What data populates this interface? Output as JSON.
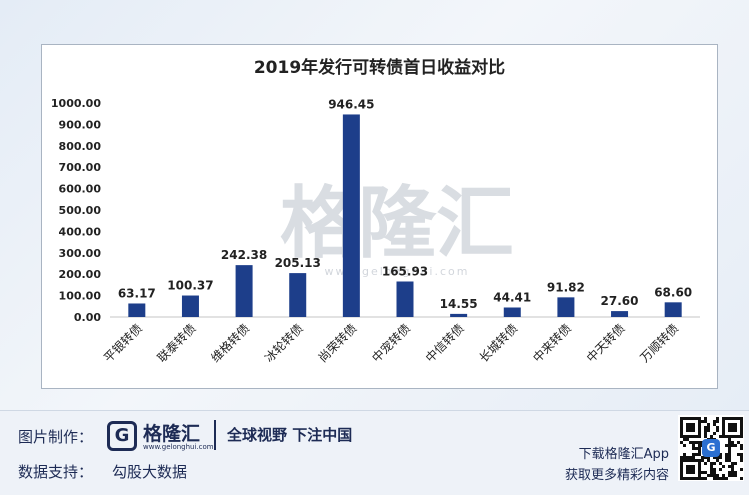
{
  "chart_data": {
    "type": "bar",
    "title": "2019年发行可转债首日收益对比",
    "categories": [
      "平银转债",
      "联泰转债",
      "维格转债",
      "冰轮转债",
      "尚荣转债",
      "中宠转债",
      "中信转债",
      "长城转债",
      "中来转债",
      "中天转债",
      "万顺转债"
    ],
    "values": [
      63.17,
      100.37,
      242.38,
      205.13,
      946.45,
      165.93,
      14.55,
      44.41,
      91.82,
      27.6,
      68.6
    ],
    "value_labels": [
      "63.17",
      "100.37",
      "242.38",
      "205.13",
      "946.45",
      "165.93",
      "14.55",
      "44.41",
      "91.82",
      "27.60",
      "68.60"
    ],
    "yticks": [
      "0.00",
      "100.00",
      "200.00",
      "300.00",
      "400.00",
      "500.00",
      "600.00",
      "700.00",
      "800.00",
      "900.00",
      "1000.00"
    ],
    "ylim": [
      0,
      1000
    ],
    "bar_color": "#1d3e8a",
    "grid": false,
    "watermark": "格隆汇",
    "watermark_url": "www.gelonghui.com"
  },
  "footer": {
    "made_by_label": "图片制作：",
    "brand_name": "格隆汇",
    "brand_url": "www.gelonghui.com",
    "slogan": "全球视野 下注中国",
    "data_support_label": "数据支持：",
    "data_support_value": "勾股大数据",
    "app_download": "下载格隆汇App",
    "app_more": "获取更多精彩内容",
    "qr_icon": "qr-code-icon"
  }
}
